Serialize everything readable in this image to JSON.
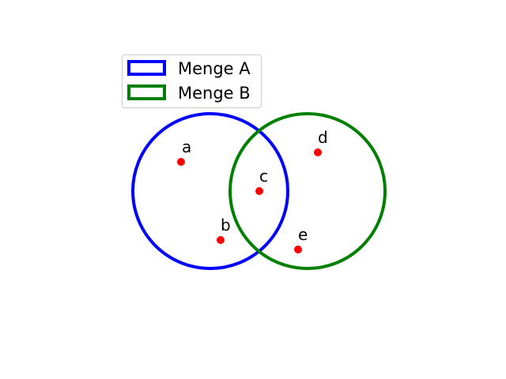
{
  "sets": [
    {
      "label": "Menge A",
      "color": "#0000ff"
    },
    {
      "label": "Menge B",
      "color": "#008000"
    }
  ],
  "elements": [
    {
      "name": "a",
      "color": "#ff0000"
    },
    {
      "name": "b",
      "color": "#ff0000"
    },
    {
      "name": "c",
      "color": "#ff0000"
    },
    {
      "name": "d",
      "color": "#ff0000"
    },
    {
      "name": "e",
      "color": "#ff0000"
    }
  ]
}
